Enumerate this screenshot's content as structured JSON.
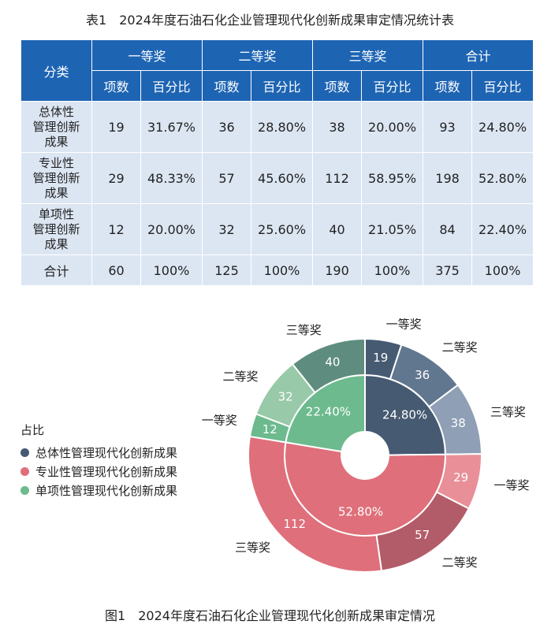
{
  "table": {
    "title": "表1　2024年度石油石化企业管理现代化创新成果审定情况统计表",
    "header": {
      "category": "分类",
      "groups": [
        "一等奖",
        "二等奖",
        "三等奖",
        "合计"
      ],
      "count_label": "项数",
      "pct_label": "百分比"
    },
    "rows": [
      {
        "category": [
          "总体性",
          "管理创新",
          "成果"
        ],
        "values": [
          "19",
          "31.67%",
          "36",
          "28.80%",
          "38",
          "20.00%",
          "93",
          "24.80%"
        ]
      },
      {
        "category": [
          "专业性",
          "管理创新",
          "成果"
        ],
        "values": [
          "29",
          "48.33%",
          "57",
          "45.60%",
          "112",
          "58.95%",
          "198",
          "52.80%"
        ]
      },
      {
        "category": [
          "单项性",
          "管理创新",
          "成果"
        ],
        "values": [
          "12",
          "20.00%",
          "32",
          "25.60%",
          "40",
          "21.05%",
          "84",
          "22.40%"
        ]
      },
      {
        "category": [
          "合计"
        ],
        "values": [
          "60",
          "100%",
          "125",
          "100%",
          "190",
          "100%",
          "375",
          "100%"
        ]
      }
    ]
  },
  "figure": {
    "caption": "图1　2024年度石油石化企业管理现代化创新成果审定情况"
  },
  "chart_data": {
    "type": "pie",
    "subtype": "sunburst",
    "legend_title": "占比",
    "legend_placement": "left",
    "inner": [
      {
        "name": "总体性管理现代化创新成果",
        "value": 93,
        "label": "24.80%",
        "color": "#465a72"
      },
      {
        "name": "专业性管理现代化创新成果",
        "value": 198,
        "label": "52.80%",
        "color": "#df6f7a"
      },
      {
        "name": "单项性管理现代化创新成果",
        "value": 84,
        "label": "22.40%",
        "color": "#6cba8e"
      }
    ],
    "outer": [
      {
        "parent": 0,
        "name": "一等奖",
        "value": 19,
        "color": "#465a72"
      },
      {
        "parent": 0,
        "name": "二等奖",
        "value": 36,
        "color": "#61768f"
      },
      {
        "parent": 0,
        "name": "三等奖",
        "value": 38,
        "color": "#8f9fb5"
      },
      {
        "parent": 1,
        "name": "一等奖",
        "value": 29,
        "color": "#e98f98"
      },
      {
        "parent": 1,
        "name": "二等奖",
        "value": 57,
        "color": "#b35c69"
      },
      {
        "parent": 1,
        "name": "三等奖",
        "value": 112,
        "color": "#df6f7a"
      },
      {
        "parent": 2,
        "name": "一等奖",
        "value": 12,
        "color": "#6cba8e"
      },
      {
        "parent": 2,
        "name": "二等奖",
        "value": 32,
        "color": "#98c9a8"
      },
      {
        "parent": 2,
        "name": "三等奖",
        "value": 40,
        "color": "#5e8d7f"
      }
    ]
  }
}
